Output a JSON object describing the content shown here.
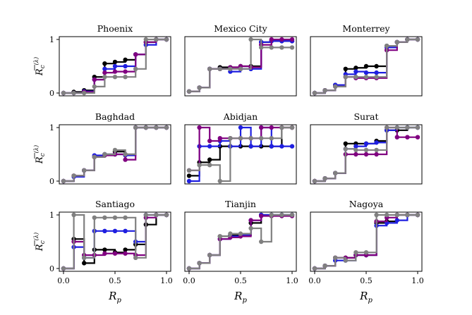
{
  "chart_data": [
    {
      "type": "line",
      "title": "Phoenix",
      "xlim": [
        0,
        1
      ],
      "ylim": [
        0,
        1
      ],
      "x": [
        0,
        0.1,
        0.2,
        0.3,
        0.4,
        0.5,
        0.6,
        0.7,
        0.8,
        0.9,
        1.0
      ],
      "series": [
        {
          "color": "#000000",
          "values": [
            0,
            0.02,
            0.05,
            0.3,
            0.55,
            0.58,
            0.62,
            0.72,
            0.95,
            1,
            1
          ]
        },
        {
          "color": "#1f1fe0",
          "values": [
            0,
            0,
            0.03,
            0.25,
            0.45,
            0.5,
            0.5,
            0.72,
            0.9,
            1,
            1
          ]
        },
        {
          "color": "#800080",
          "values": [
            0,
            0,
            0.02,
            0.25,
            0.38,
            0.4,
            0.4,
            0.72,
            0.95,
            1,
            1
          ]
        },
        {
          "color": "#808080",
          "values": [
            0,
            0,
            0,
            0.12,
            0.3,
            0.3,
            0.3,
            0.45,
            1,
            1,
            1
          ]
        }
      ]
    },
    {
      "type": "line",
      "title": "Mexico City",
      "xlim": [
        0,
        1
      ],
      "ylim": [
        0,
        1
      ],
      "x": [
        0,
        0.1,
        0.2,
        0.3,
        0.4,
        0.5,
        0.6,
        0.7,
        0.8,
        0.9,
        1.0
      ],
      "series": [
        {
          "color": "#000000",
          "values": [
            0.03,
            0.1,
            0.45,
            0.48,
            0.48,
            0.5,
            0.5,
            0.95,
            0.97,
            0.97,
            0.97
          ]
        },
        {
          "color": "#1f1fe0",
          "values": [
            0.03,
            0.1,
            0.45,
            0.45,
            0.4,
            0.45,
            0.45,
            0.95,
            0.97,
            0.97,
            0.97
          ]
        },
        {
          "color": "#800080",
          "values": [
            0.03,
            0.1,
            0.45,
            0.45,
            0.48,
            0.5,
            0.48,
            0.9,
            1,
            1,
            1
          ]
        },
        {
          "color": "#808080",
          "values": [
            0.03,
            0.1,
            0.45,
            0.45,
            0.45,
            0.45,
            1,
            0.85,
            0.85,
            0.85,
            0.85
          ]
        }
      ]
    },
    {
      "type": "line",
      "title": "Monterrey",
      "xlim": [
        0,
        1
      ],
      "ylim": [
        0,
        1
      ],
      "x": [
        0,
        0.1,
        0.2,
        0.3,
        0.4,
        0.5,
        0.6,
        0.7,
        0.8,
        0.9,
        1.0
      ],
      "series": [
        {
          "color": "#000000",
          "values": [
            0,
            0.05,
            0.15,
            0.45,
            0.47,
            0.5,
            0.5,
            0.88,
            0.95,
            1,
            1
          ]
        },
        {
          "color": "#1f1fe0",
          "values": [
            0,
            0.05,
            0.15,
            0.35,
            0.4,
            0.38,
            0.38,
            0.85,
            0.95,
            1,
            1
          ]
        },
        {
          "color": "#800080",
          "values": [
            0,
            0.05,
            0.12,
            0.3,
            0.28,
            0.28,
            0.28,
            0.8,
            0.95,
            1,
            1
          ]
        },
        {
          "color": "#808080",
          "values": [
            0,
            0.05,
            0.12,
            0.3,
            0.3,
            0.3,
            0.3,
            0.88,
            0.95,
            1,
            1
          ]
        }
      ]
    },
    {
      "type": "line",
      "title": "Baghdad",
      "xlim": [
        0,
        1
      ],
      "ylim": [
        0,
        1
      ],
      "x": [
        0,
        0.1,
        0.2,
        0.3,
        0.4,
        0.5,
        0.6,
        0.7,
        0.8,
        0.9,
        1.0
      ],
      "series": [
        {
          "color": "#000000",
          "values": [
            0,
            0.1,
            0.2,
            0.45,
            0.5,
            0.55,
            0.5,
            1,
            1,
            1,
            1
          ]
        },
        {
          "color": "#1f1fe0",
          "values": [
            0,
            0.08,
            0.2,
            0.48,
            0.5,
            0.5,
            0.48,
            1,
            1,
            1,
            1
          ]
        },
        {
          "color": "#800080",
          "values": [
            0,
            0.1,
            0.2,
            0.45,
            0.48,
            0.5,
            0.4,
            1,
            1,
            1,
            1
          ]
        },
        {
          "color": "#808080",
          "values": [
            0,
            0.1,
            0.2,
            0.45,
            0.5,
            0.58,
            0.5,
            1,
            1,
            1,
            1
          ]
        }
      ]
    },
    {
      "type": "line",
      "title": "Abidjan",
      "xlim": [
        0,
        1
      ],
      "ylim": [
        0,
        1
      ],
      "x": [
        0,
        0.1,
        0.2,
        0.3,
        0.4,
        0.5,
        0.6,
        0.7,
        0.8,
        0.9,
        1.0
      ],
      "series": [
        {
          "color": "#000000",
          "values": [
            0.1,
            0.35,
            0.4,
            0.65,
            0.65,
            0.65,
            0.65,
            0.65,
            0.65,
            1,
            1
          ]
        },
        {
          "color": "#1f1fe0",
          "values": [
            0,
            0.65,
            0.65,
            0.75,
            0.65,
            1,
            0.65,
            1,
            0.65,
            0.65,
            0.65
          ]
        },
        {
          "color": "#800080",
          "values": [
            0.2,
            1,
            0.75,
            0.8,
            0.8,
            0.8,
            0.8,
            1,
            1,
            1,
            1
          ]
        },
        {
          "color": "#808080",
          "values": [
            0.2,
            0.3,
            0.3,
            0,
            0.8,
            0.8,
            0.8,
            0.8,
            0.8,
            1,
            1
          ]
        }
      ]
    },
    {
      "type": "line",
      "title": "Surat",
      "xlim": [
        0,
        1
      ],
      "ylim": [
        0,
        1
      ],
      "x": [
        0,
        0.1,
        0.2,
        0.3,
        0.4,
        0.5,
        0.6,
        0.7,
        0.8,
        0.9,
        1.0
      ],
      "series": [
        {
          "color": "#000000",
          "values": [
            0,
            0.05,
            0.15,
            0.7,
            0.7,
            0.7,
            0.75,
            0.95,
            0.95,
            1,
            1
          ]
        },
        {
          "color": "#1f1fe0",
          "values": [
            0,
            0.05,
            0.15,
            0.6,
            0.65,
            0.7,
            0.72,
            0.95,
            1,
            1,
            1
          ]
        },
        {
          "color": "#800080",
          "values": [
            0,
            0.05,
            0.15,
            0.5,
            0.5,
            0.5,
            0.5,
            1,
            0.82,
            0.82,
            0.82
          ]
        },
        {
          "color": "#808080",
          "values": [
            0,
            0.05,
            0.15,
            0.6,
            0.58,
            0.58,
            0.58,
            1,
            1,
            1,
            1
          ]
        }
      ]
    },
    {
      "type": "line",
      "title": "Santiago",
      "xlim": [
        0,
        1
      ],
      "ylim": [
        0,
        1
      ],
      "x": [
        0,
        0.1,
        0.2,
        0.3,
        0.4,
        0.5,
        0.6,
        0.7,
        0.8,
        0.9,
        1.0
      ],
      "series": [
        {
          "color": "#000000",
          "values": [
            0,
            0.55,
            0.1,
            0.35,
            0.35,
            0.3,
            0.35,
            0.45,
            0.82,
            1,
            1
          ]
        },
        {
          "color": "#1f1fe0",
          "values": [
            0,
            0.4,
            0.2,
            0.7,
            0.7,
            0.7,
            0.7,
            0.5,
            1,
            1,
            1
          ]
        },
        {
          "color": "#800080",
          "values": [
            0,
            0.5,
            0.25,
            0.25,
            0.28,
            0.28,
            0.28,
            0.25,
            0.95,
            1,
            1
          ]
        },
        {
          "color": "#808080",
          "values": [
            0,
            1,
            0.2,
            0.95,
            0.95,
            0.95,
            0.95,
            0.2,
            1,
            1,
            1
          ]
        }
      ]
    },
    {
      "type": "line",
      "title": "Tianjin",
      "xlim": [
        0,
        1
      ],
      "ylim": [
        0,
        1
      ],
      "x": [
        0,
        0.1,
        0.2,
        0.3,
        0.4,
        0.5,
        0.6,
        0.7,
        0.8,
        0.9,
        1.0
      ],
      "series": [
        {
          "color": "#000000",
          "values": [
            0,
            0.1,
            0.25,
            0.6,
            0.62,
            0.62,
            0.85,
            1,
            1,
            1,
            1
          ]
        },
        {
          "color": "#1f1fe0",
          "values": [
            0,
            0.1,
            0.25,
            0.55,
            0.6,
            0.62,
            0.9,
            1,
            1,
            1,
            1
          ]
        },
        {
          "color": "#800080",
          "values": [
            0,
            0.1,
            0.25,
            0.55,
            0.58,
            0.6,
            0.9,
            0.98,
            0.98,
            0.98,
            0.98
          ]
        },
        {
          "color": "#808080",
          "values": [
            0,
            0.1,
            0.25,
            0.6,
            0.65,
            0.65,
            0.75,
            0.5,
            1,
            1,
            1
          ]
        }
      ]
    },
    {
      "type": "line",
      "title": "Nagoya",
      "xlim": [
        0,
        1
      ],
      "ylim": [
        0,
        1
      ],
      "x": [
        0,
        0.1,
        0.2,
        0.3,
        0.4,
        0.5,
        0.6,
        0.7,
        0.8,
        0.9,
        1.0
      ],
      "series": [
        {
          "color": "#000000",
          "values": [
            0,
            0.05,
            0.2,
            0.2,
            0.25,
            0.25,
            0.85,
            0.88,
            1,
            1,
            1
          ]
        },
        {
          "color": "#1f1fe0",
          "values": [
            0,
            0.05,
            0.15,
            0.15,
            0.25,
            0.25,
            0.8,
            0.85,
            0.9,
            1,
            1
          ]
        },
        {
          "color": "#800080",
          "values": [
            0,
            0.05,
            0.2,
            0.2,
            0.25,
            0.25,
            0.88,
            0.95,
            1,
            1,
            1
          ]
        },
        {
          "color": "#808080",
          "values": [
            0,
            0.05,
            0.2,
            0.15,
            0.3,
            0.3,
            1,
            1,
            1,
            1,
            1
          ]
        }
      ]
    }
  ],
  "axes": {
    "xlabel": "R",
    "xlabel_sub": "p",
    "ylabel": "R",
    "ylabel_sub": "c",
    "ylabel_sup": "(λ)",
    "xticks": [
      "0.0",
      "0.5",
      "1.0"
    ],
    "yticks": [
      "0",
      "1"
    ]
  }
}
